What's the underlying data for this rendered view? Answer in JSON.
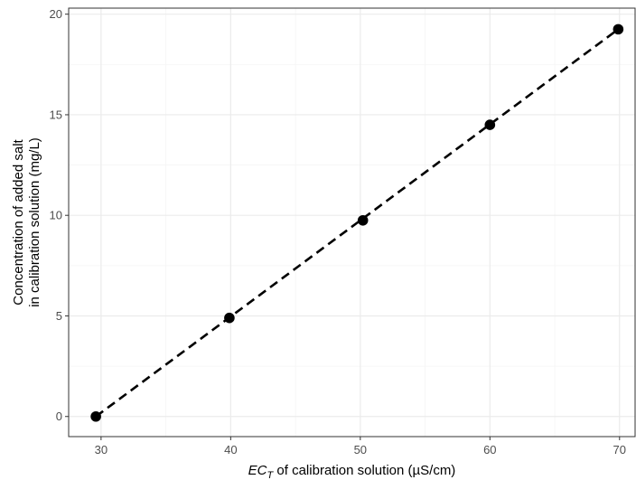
{
  "chart_data": {
    "type": "scatter",
    "title": "",
    "xlabel": {
      "prefix": "EC",
      "subscript": "T",
      "rest": " of calibration solution (µS/cm)"
    },
    "ylabel_lines": [
      "Concentration of added salt",
      "in calibration solution (mg/L)"
    ],
    "xlim": [
      27.5,
      71.2
    ],
    "ylim": [
      -1.0,
      20.3
    ],
    "x_ticks": [
      30,
      40,
      50,
      60,
      70
    ],
    "x_minor": [
      35,
      45,
      55,
      65
    ],
    "y_ticks": [
      0,
      5,
      10,
      15,
      20
    ],
    "y_minor": [
      2.5,
      7.5,
      12.5,
      17.5
    ],
    "grid": true,
    "points": [
      {
        "x": 29.6,
        "y": 0.0
      },
      {
        "x": 39.9,
        "y": 4.9
      },
      {
        "x": 50.2,
        "y": 9.75
      },
      {
        "x": 60.0,
        "y": 14.5
      },
      {
        "x": 69.9,
        "y": 19.25
      }
    ],
    "fit_line": {
      "style": "dashed",
      "color": "#000000",
      "x": [
        29.6,
        69.9
      ],
      "y": [
        0.0,
        19.25
      ]
    },
    "colors": {
      "points": "#000000",
      "grid_major": "#ebebeb",
      "grid_minor": "#f5f5f5",
      "panel_border": "#333333"
    }
  }
}
